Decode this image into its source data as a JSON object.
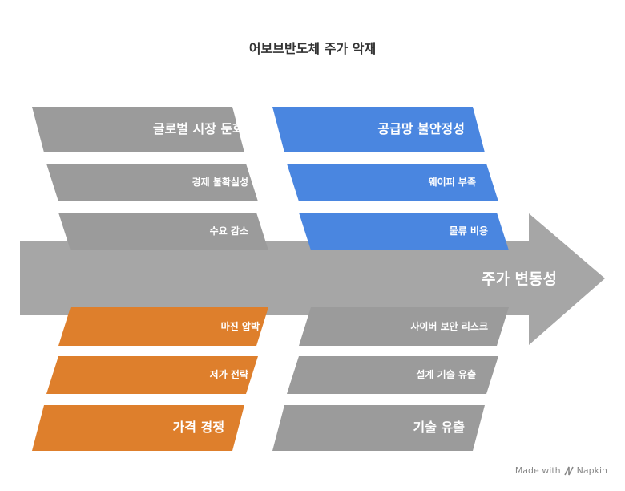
{
  "title": "어보브반도체 주가 악재",
  "spine": {
    "label": "주가 변동성",
    "color": "#a6a6a6"
  },
  "colors": {
    "gray": "#9b9b9b",
    "blue": "#4a86e0",
    "orange": "#de7f2c"
  },
  "categories": [
    {
      "label": "글로벌 시장 둔화",
      "color": "gray",
      "causes": [
        "경제 불확실성",
        "수요 감소"
      ]
    },
    {
      "label": "공급망 불안정성",
      "color": "blue",
      "causes": [
        "웨이퍼 부족",
        "물류 비용"
      ]
    },
    {
      "label": "가격 경쟁",
      "color": "orange",
      "causes": [
        "마진 압박",
        "저가 전략"
      ]
    },
    {
      "label": "기술 유출",
      "color": "gray",
      "causes": [
        "사이버 보안 리스크",
        "설계 기술 유출"
      ]
    }
  ],
  "watermark": {
    "text": "Made with",
    "brand": "Napkin",
    "icon": "napkin-logo-icon"
  }
}
